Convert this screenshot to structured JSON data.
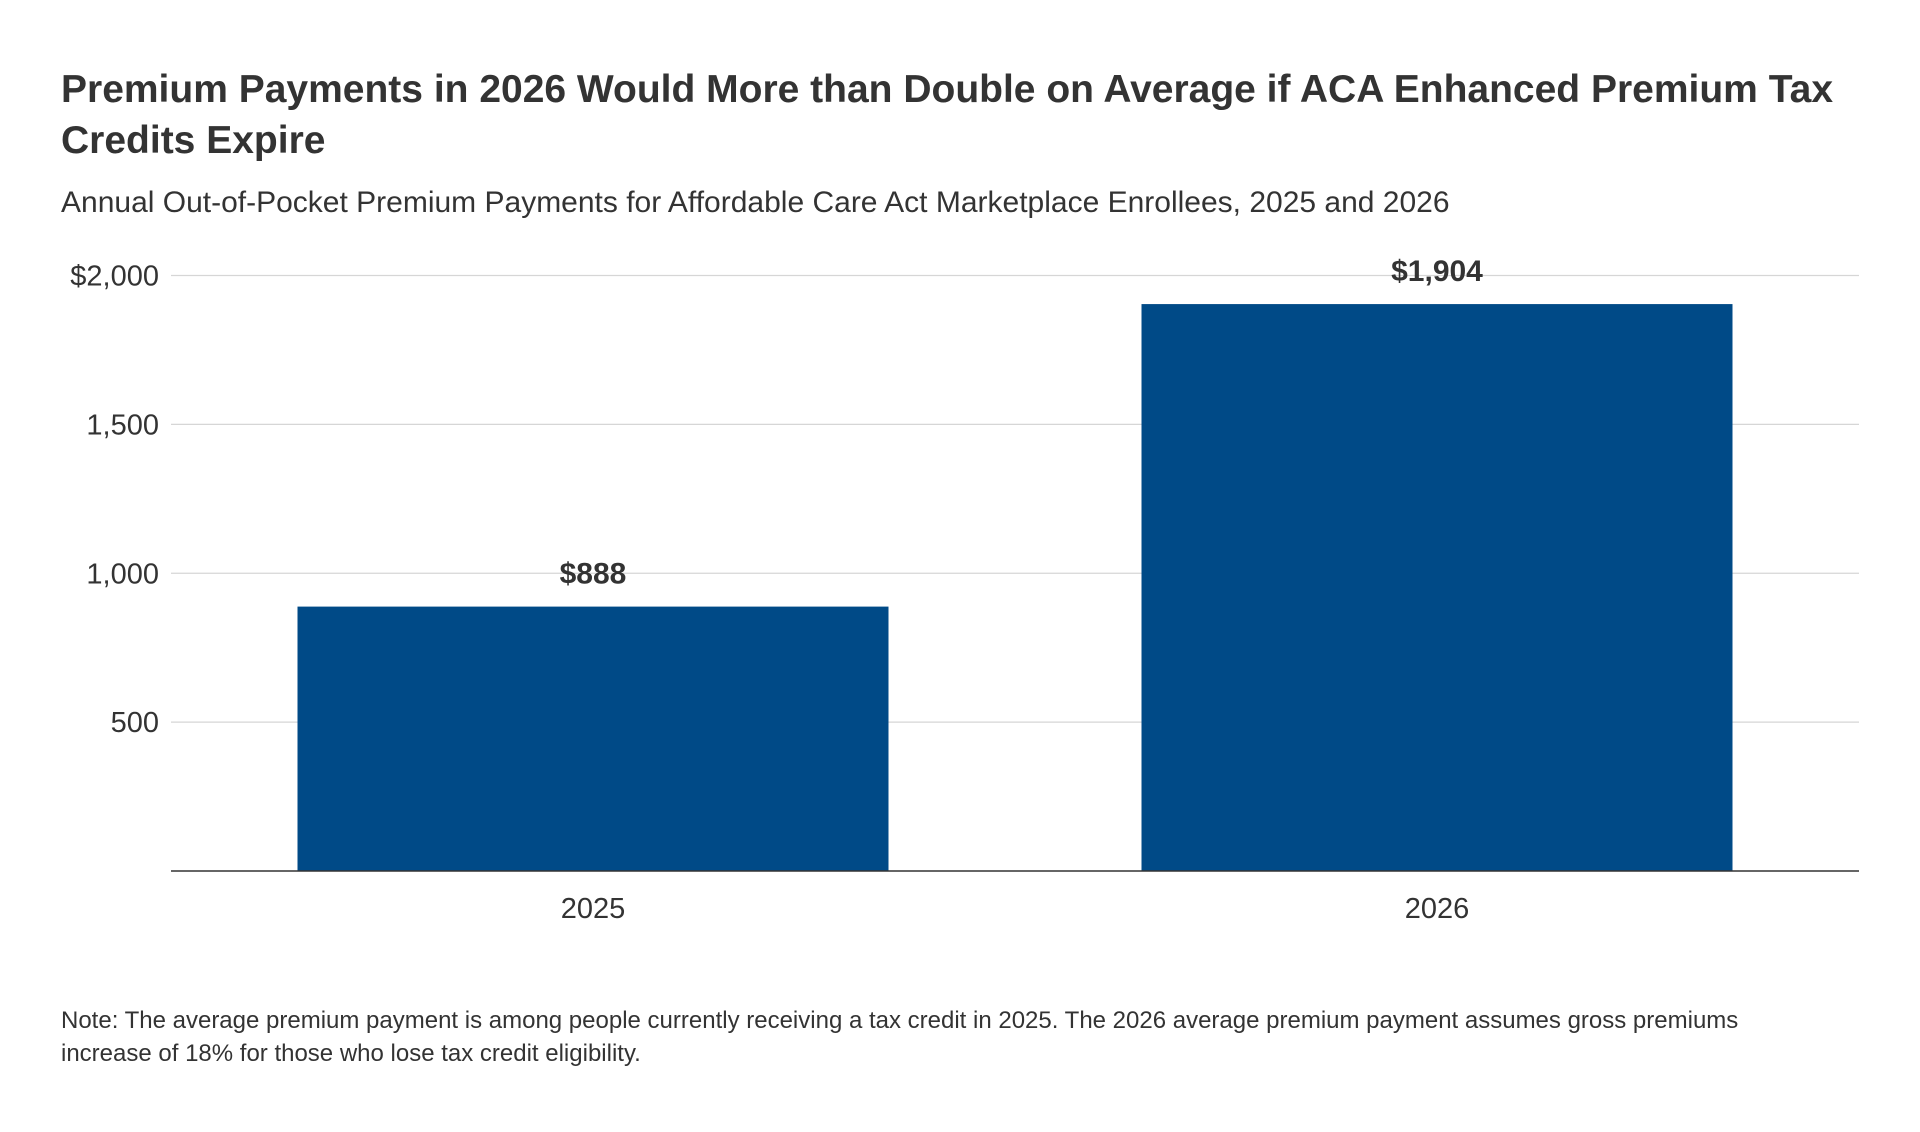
{
  "chart_data": {
    "type": "bar",
    "title": "Premium Payments in 2026 Would More than Double on Average if ACA Enhanced Premium Tax Credits Expire",
    "subtitle": "Annual Out-of-Pocket Premium Payments for Affordable Care Act Marketplace Enrollees, 2025 and 2026",
    "categories": [
      "2025",
      "2026"
    ],
    "values": [
      888,
      1904
    ],
    "data_labels": [
      "$888",
      "$1,904"
    ],
    "xlabel": "",
    "ylabel": "",
    "ylim": [
      0,
      2000
    ],
    "yticks": [
      500,
      1000,
      1500,
      2000
    ],
    "ytick_labels": [
      "500",
      "1,000",
      "1,500",
      "$2,000"
    ],
    "grid": true,
    "bar_color": "#004A87",
    "note": "Note: The average premium payment is among people currently receiving a tax credit in 2025. The 2026 average premium payment assumes gross premiums increase of 18% for those who lose tax credit eligibility."
  }
}
